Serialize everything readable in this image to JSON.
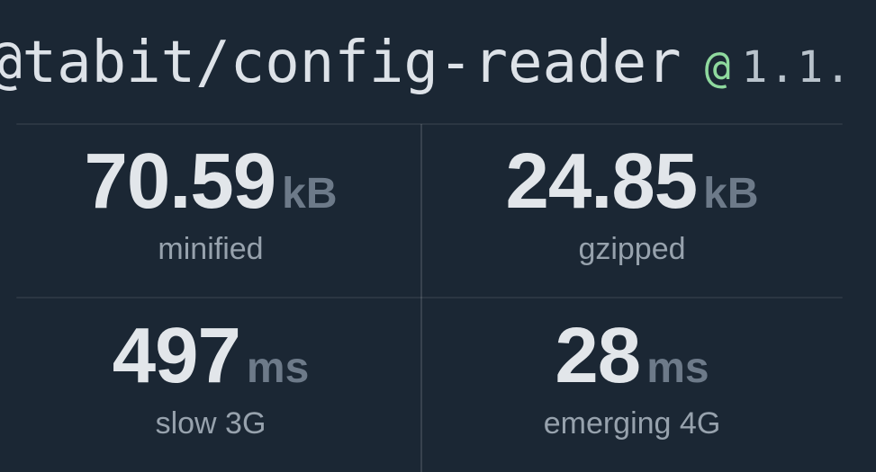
{
  "header": {
    "package_name": "@tabit/config-reader",
    "version_at": "@",
    "version": "1.1."
  },
  "stats": {
    "items": [
      {
        "value": "70.59",
        "unit": "kB",
        "label": "minified"
      },
      {
        "value": "24.85",
        "unit": "kB",
        "label": "gzipped"
      },
      {
        "value": "497",
        "unit": "ms",
        "label": "slow 3G"
      },
      {
        "value": "28",
        "unit": "ms",
        "label": "emerging 4G"
      }
    ]
  },
  "colors": {
    "background": "#1b2734",
    "accent_green": "#8fd99e",
    "value_text": "#e2e6ea",
    "unit_text": "#6d7a89",
    "label_text": "#97a2ad"
  }
}
